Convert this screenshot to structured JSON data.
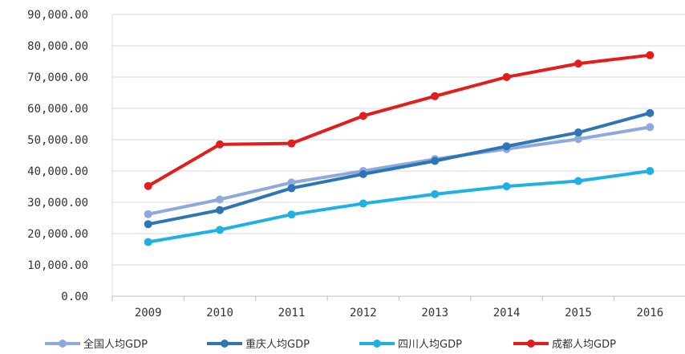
{
  "chart_data": {
    "type": "line",
    "x": [
      "2009",
      "2010",
      "2011",
      "2012",
      "2013",
      "2014",
      "2015",
      "2016"
    ],
    "y_ticks": [
      "0.00",
      "10,000.00",
      "20,000.00",
      "30,000.00",
      "40,000.00",
      "50,000.00",
      "60,000.00",
      "70,000.00",
      "80,000.00",
      "90,000.00"
    ],
    "ylim": [
      0,
      90000
    ],
    "grid": true,
    "legend_position": "bottom",
    "series": [
      {
        "name": "全国人均GDP",
        "color": "#8EA9DB",
        "values": [
          26200,
          30900,
          36300,
          40000,
          43800,
          47000,
          50200,
          54000
        ]
      },
      {
        "name": "重庆人均GDP",
        "color": "#2E75B6",
        "values": [
          23000,
          27500,
          34500,
          39000,
          43200,
          47900,
          52300,
          58500
        ]
      },
      {
        "name": "四川人均GDP",
        "color": "#1FB0E6",
        "values": [
          17300,
          21200,
          26100,
          29600,
          32600,
          35100,
          36800,
          40000
        ]
      },
      {
        "name": "成都人均GDP",
        "color": "#E31C1C",
        "values": [
          35200,
          48500,
          48800,
          57600,
          63900,
          70000,
          74300,
          77000
        ]
      }
    ]
  }
}
